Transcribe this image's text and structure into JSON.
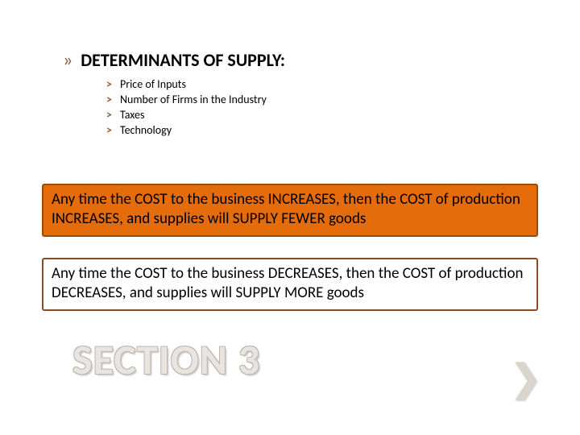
{
  "heading": {
    "bullet": "»",
    "text": "DETERMINANTS OF SUPPLY:"
  },
  "sublist": {
    "bullet": "˃",
    "items": [
      "Price of Inputs",
      "Number of Firms in the Industry",
      "Taxes",
      "Technology"
    ]
  },
  "callout1": {
    "text": "Any time the COST to the business INCREASES, then the COST of production INCREASES, and supplies will SUPPLY FEWER goods",
    "bg": "#e46c0a",
    "border": "#a04a00"
  },
  "callout2": {
    "text": "Any time the COST to the business DECREASES, then the COST of production DECREASES, and supplies will SUPPLY MORE goods",
    "bg": "#ffffff",
    "border": "#8b4a2b"
  },
  "section_title": "SECTION 3",
  "corner_glyph": "❯",
  "colors": {
    "accent": "#8b5a3c",
    "title_fill": "#e8e4df",
    "title_outline": "#bfb8ae"
  }
}
